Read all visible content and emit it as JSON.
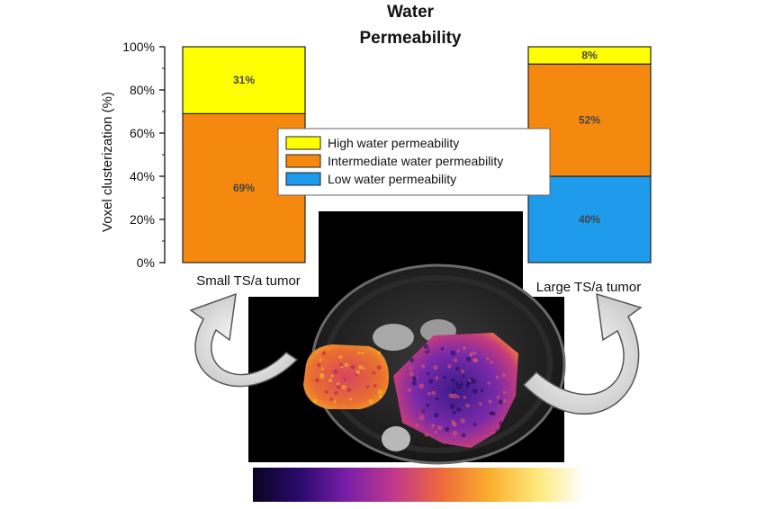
{
  "chart_data": {
    "type": "bar",
    "stacked": true,
    "title": [
      "Water",
      "Permeability"
    ],
    "ylabel": "Voxel clusterization (%)",
    "ylim": [
      0,
      100
    ],
    "yticks": [
      "0%",
      "20%",
      "40%",
      "60%",
      "80%",
      "100%"
    ],
    "categories": [
      "Small TS/a tumor",
      "Large TS/a tumor"
    ],
    "series": [
      {
        "name": "Low water permeability",
        "color": "#1e9bea",
        "values": [
          0,
          40
        ],
        "labels": [
          "",
          "40%"
        ]
      },
      {
        "name": "Intermediate water permeability",
        "color": "#f5890f",
        "values": [
          69,
          52
        ],
        "labels": [
          "69%",
          "52%"
        ]
      },
      {
        "name": "High water permeability",
        "color": "#ffff00",
        "values": [
          31,
          8
        ],
        "labels": [
          "31%",
          "8%"
        ]
      }
    ],
    "legend_order": [
      "High water permeability",
      "Intermediate water permeability",
      "Low water permeability"
    ],
    "legend_position": "center",
    "grid": false
  },
  "colorbar": {
    "colors": [
      "#0a0420",
      "#2a0a6e",
      "#7a1fa8",
      "#c2398a",
      "#ef6a3b",
      "#fbae2e",
      "#fde87a",
      "#ffffff"
    ]
  },
  "scan_icons": [
    "curved-arrow-left-icon",
    "curved-arrow-right-icon"
  ]
}
